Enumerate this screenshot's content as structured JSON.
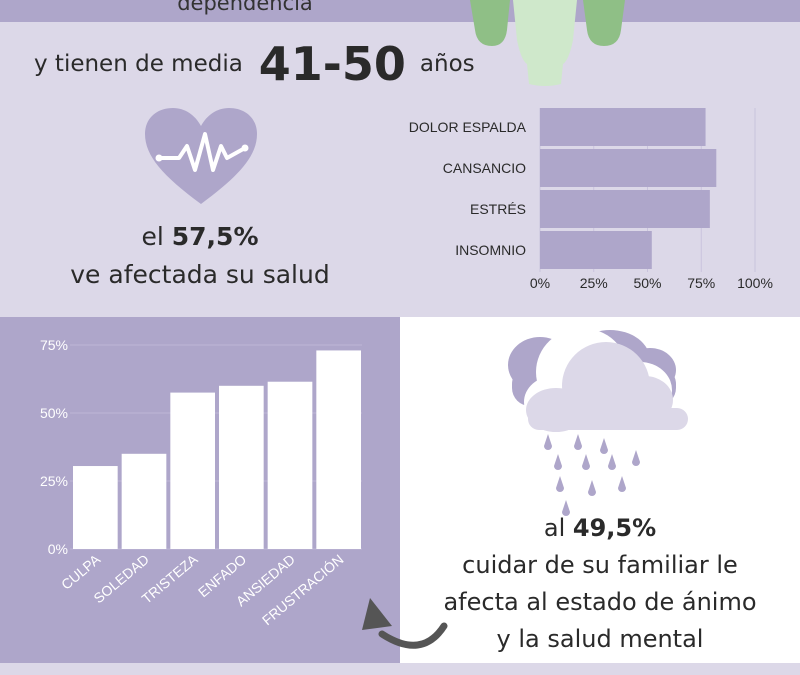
{
  "top_strip": {
    "text": "dependencia"
  },
  "age": {
    "prefix": "y tienen de media",
    "value": "41-50",
    "suffix": "años"
  },
  "health": {
    "pre": "el",
    "value": "57,5%",
    "post": "ve afectada su salud"
  },
  "mood": {
    "pre": "al",
    "value": "49,5%",
    "lines": [
      "cuidar de su familiar le",
      "afecta al estado de ánimo",
      "y la salud mental"
    ]
  },
  "colors": {
    "light_lavender": "#dcd8e8",
    "lavender": "#aea6ca",
    "bar_purple": "#aea6ca",
    "white": "#ffffff",
    "green": "#8fbf86",
    "light_green": "#cfe8cb"
  },
  "icons": [
    "people-icon",
    "heart-pulse-icon",
    "rain-cloud-icon",
    "curved-arrow-icon"
  ],
  "chart_data": [
    {
      "type": "bar",
      "orientation": "horizontal",
      "categories": [
        "DOLOR ESPALDA",
        "CANSANCIO",
        "ESTRÉS",
        "INSOMNIO"
      ],
      "values": [
        77,
        82,
        79,
        52
      ],
      "x_ticks": [
        "0%",
        "25%",
        "50%",
        "75%",
        "100%"
      ],
      "xlim": [
        0,
        100
      ],
      "grid": true
    },
    {
      "type": "bar",
      "orientation": "vertical",
      "categories": [
        "CULPA",
        "SOLEDAD",
        "TRISTEZA",
        "ENFADO",
        "ANSIEDAD",
        "FRUSTRACIÓN"
      ],
      "values": [
        30.5,
        35,
        57.5,
        60,
        61.5,
        73
      ],
      "y_ticks": [
        "0%",
        "25%",
        "50%",
        "75%"
      ],
      "ylim": [
        0,
        75
      ],
      "grid": true
    }
  ]
}
